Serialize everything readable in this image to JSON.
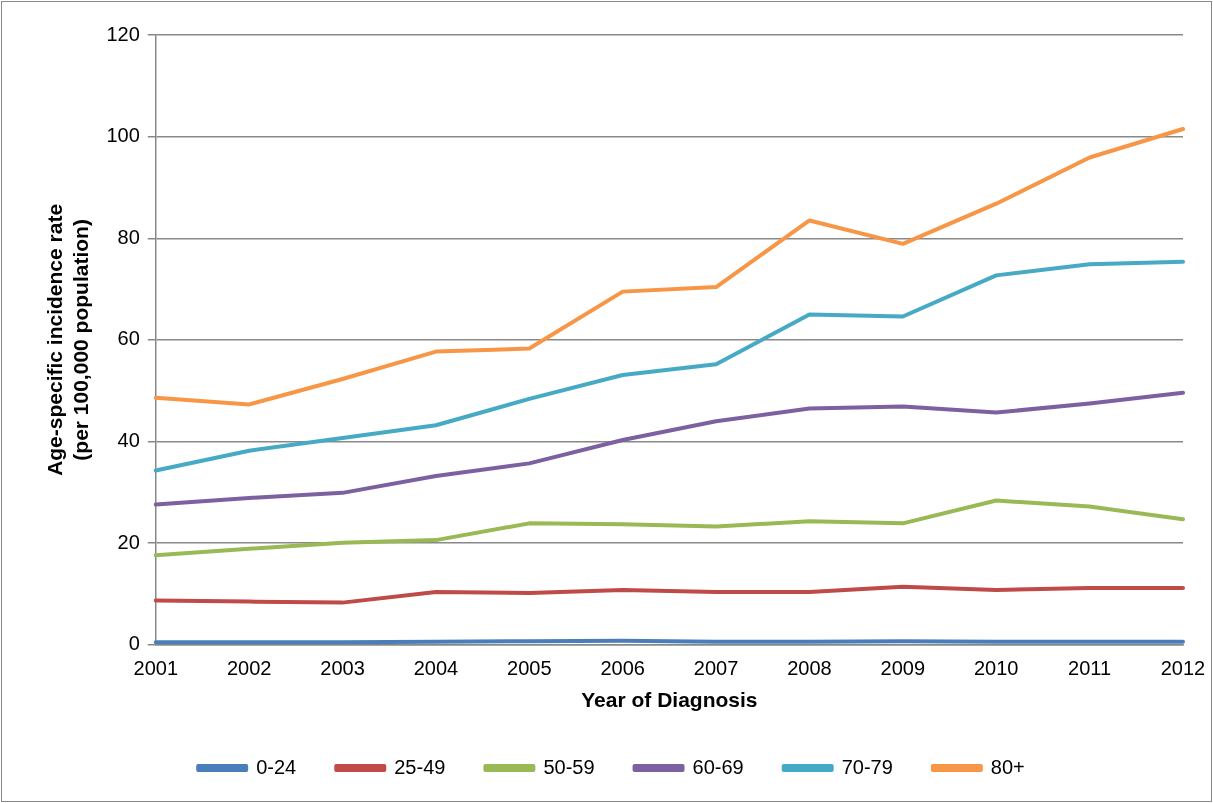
{
  "chart_data": {
    "type": "line",
    "xlabel": "Year of Diagnosis",
    "ylabel": "Age-specific incidence rate (per 100,000 population)",
    "categories": [
      "2001",
      "2002",
      "2003",
      "2004",
      "2005",
      "2006",
      "2007",
      "2008",
      "2009",
      "2010",
      "2011",
      "2012"
    ],
    "series": [
      {
        "name": "0-24",
        "color": "#4a7ebb",
        "values": [
          0.5,
          0.5,
          0.5,
          0.6,
          0.7,
          0.8,
          0.6,
          0.6,
          0.7,
          0.6,
          0.6,
          0.6
        ]
      },
      {
        "name": "25-49",
        "color": "#be4b48",
        "values": [
          8.7,
          8.5,
          8.3,
          10.4,
          10.2,
          10.8,
          10.4,
          10.4,
          11.4,
          10.8,
          11.2,
          11.2
        ]
      },
      {
        "name": "50-59",
        "color": "#98b954",
        "values": [
          17.6,
          18.9,
          20.1,
          20.6,
          23.9,
          23.7,
          23.3,
          24.3,
          23.9,
          28.4,
          27.2,
          24.7
        ]
      },
      {
        "name": "60-69",
        "color": "#7d60a0",
        "values": [
          27.6,
          28.9,
          29.9,
          33.2,
          35.7,
          40.3,
          44.0,
          46.5,
          46.9,
          45.7,
          47.5,
          49.6
        ]
      },
      {
        "name": "70-79",
        "color": "#46aac5",
        "values": [
          34.3,
          38.2,
          40.7,
          43.2,
          48.4,
          53.1,
          55.2,
          65.0,
          64.6,
          72.7,
          74.9,
          75.4
        ]
      },
      {
        "name": "80+",
        "color": "#f79646",
        "values": [
          48.6,
          47.3,
          52.3,
          57.7,
          58.3,
          69.5,
          70.4,
          83.5,
          78.9,
          86.8,
          95.9,
          101.5
        ]
      }
    ],
    "ylim": [
      0,
      120
    ],
    "yticks": [
      0,
      20,
      40,
      60,
      80,
      100,
      120
    ],
    "grid": "y",
    "legend": "bottom",
    "marker": "none",
    "line_style": "solid"
  }
}
